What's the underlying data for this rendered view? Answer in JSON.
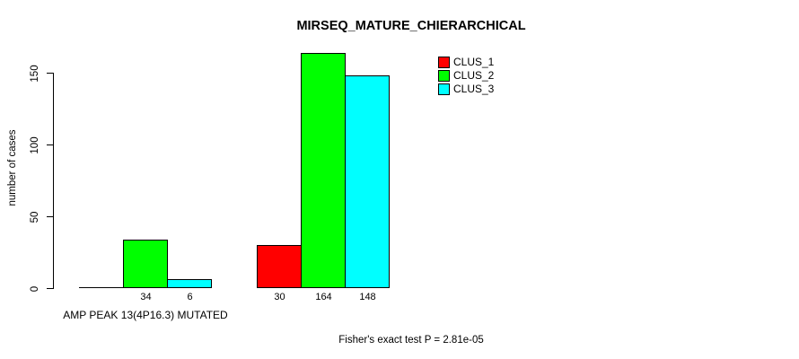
{
  "title": "MIRSEQ_MATURE_CHIERARCHICAL",
  "chart_data": {
    "type": "bar",
    "title": "MIRSEQ_MATURE_CHIERARCHICAL",
    "xlabel": "",
    "ylabel": "number of cases",
    "ylim": [
      0,
      150
    ],
    "yticks": [
      0,
      50,
      100,
      150
    ],
    "categories": [
      "AMP PEAK 13(4P16.3) MUTATED",
      ""
    ],
    "series": [
      {
        "name": "CLUS_1",
        "color": "#FF0000",
        "values": [
          0,
          30
        ]
      },
      {
        "name": "CLUS_2",
        "color": "#00FF00",
        "values": [
          34,
          164
        ]
      },
      {
        "name": "CLUS_3",
        "color": "#00FFFF",
        "values": [
          6,
          148
        ]
      }
    ],
    "visible_bar_value_labels": [
      "34",
      "6",
      "30",
      "164",
      "148"
    ],
    "legend": {
      "position": "top-right",
      "entries": [
        "CLUS_1",
        "CLUS_2",
        "CLUS_3"
      ]
    },
    "grid": false,
    "annotation": "Fisher's exact test P = 2.81e-05"
  },
  "colors": {
    "clus_1": "#FF0000",
    "clus_2": "#00FF00",
    "clus_3": "#00FFFF",
    "axis": "#000000",
    "background": "#FFFFFF"
  }
}
